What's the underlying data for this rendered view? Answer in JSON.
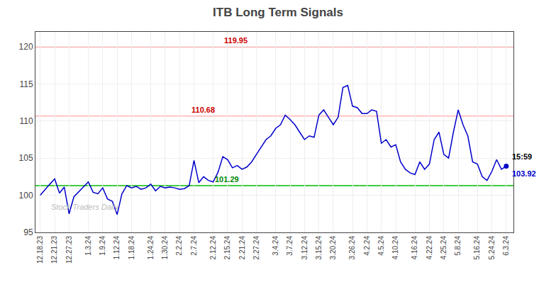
{
  "chart_data": {
    "type": "line",
    "title": "ITB Long Term Signals",
    "categories": [
      "12.18.23",
      null,
      null,
      "12.21.23",
      null,
      null,
      "12.27.23",
      null,
      null,
      null,
      "1.3.24",
      null,
      null,
      "1.9.24",
      null,
      null,
      "1.12.24",
      null,
      null,
      "1.18.24",
      null,
      null,
      null,
      "1.24.24",
      null,
      null,
      "1.30.24",
      null,
      null,
      "2.2.24",
      null,
      null,
      "2.7.24",
      null,
      null,
      null,
      "2.12.24",
      null,
      null,
      "2.15.24",
      null,
      null,
      "2.21.24",
      null,
      null,
      "2.27.24",
      null,
      null,
      null,
      "3.4.24",
      null,
      null,
      "3.7.24",
      null,
      null,
      "3.12.24",
      null,
      null,
      "3.15.24",
      null,
      null,
      "3.20.24",
      null,
      null,
      null,
      "3.26.24",
      null,
      null,
      "4.2.24",
      null,
      null,
      "4.5.24",
      null,
      null,
      "4.10.24",
      null,
      null,
      null,
      "4.16.24",
      null,
      null,
      "4.22.24",
      null,
      null,
      "4.25.24",
      null,
      null,
      "5.8.24",
      null,
      null,
      null,
      "5.16.24",
      null,
      null,
      "5.24.24",
      null,
      null,
      "6.3.24"
    ],
    "values": [
      100.0,
      100.8,
      101.5,
      102.2,
      100.3,
      101.1,
      97.5,
      99.8,
      100.5,
      101.2,
      101.8,
      100.4,
      100.2,
      101.0,
      99.5,
      99.2,
      97.4,
      100.2,
      101.3,
      101.0,
      101.2,
      100.8,
      101.0,
      101.5,
      100.6,
      101.2,
      101.0,
      101.1,
      101.0,
      100.8,
      100.9,
      101.3,
      104.7,
      101.7,
      102.5,
      102.0,
      101.8,
      103.1,
      105.2,
      104.8,
      103.7,
      104.0,
      103.5,
      103.8,
      104.5,
      105.5,
      106.5,
      107.5,
      108.0,
      109.0,
      109.5,
      110.8,
      110.2,
      109.5,
      108.5,
      107.5,
      108.0,
      107.8,
      110.8,
      111.5,
      110.5,
      109.5,
      110.5,
      114.5,
      114.8,
      112.0,
      111.8,
      111.0,
      111.0,
      111.5,
      111.3,
      107.0,
      107.5,
      106.5,
      106.8,
      104.5,
      103.5,
      103.0,
      102.8,
      104.5,
      103.5,
      104.2,
      107.5,
      108.5,
      105.5,
      105.0,
      108.5,
      111.5,
      109.5,
      108.0,
      104.5,
      104.2,
      102.5,
      102.0,
      103.2,
      104.8,
      103.5,
      103.92
    ],
    "color": "#0000cc",
    "ylim": [
      95,
      122
    ],
    "yticks": [
      95,
      100,
      105,
      110,
      115,
      120
    ],
    "grid": true,
    "hlines": [
      {
        "value": 119.95,
        "label": "119.95",
        "color": "#ffb3b3",
        "label_color": "#cc0000"
      },
      {
        "value": 110.68,
        "label": "110.68",
        "color": "#ffb3b3",
        "label_color": "#cc0000"
      },
      {
        "value": 101.29,
        "label": "101.29",
        "color": "#00bb00",
        "label_color": "#008800"
      }
    ],
    "last_point_labels": [
      {
        "text": "15:59",
        "color": "#000000"
      },
      {
        "text": "103.92",
        "color": "#0000cc"
      }
    ],
    "watermark": {
      "text": "Stock Traders Daily",
      "color": "#bbbbbb"
    }
  }
}
